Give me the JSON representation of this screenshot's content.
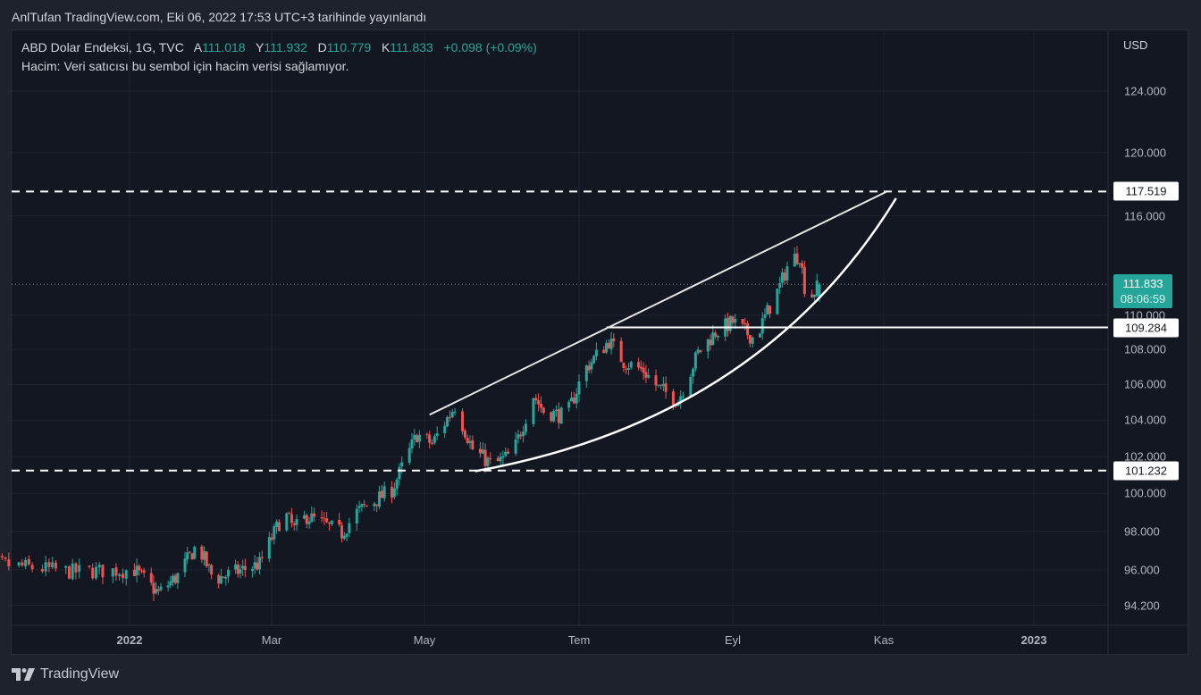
{
  "header": {
    "published": "AnlTufan TradingView.com, Eki 06, 2022 17:53 UTC+3 tarihinde yayınlandı"
  },
  "legend": {
    "symbol": "ABD Dolar Endeksi, 1G, TVC",
    "open_label": "A",
    "open": "111.018",
    "high_label": "Y",
    "high": "111.932",
    "low_label": "D",
    "low": "110.779",
    "close_label": "K",
    "close": "111.833",
    "change": "+0.098 (+0.09%)",
    "volume_note": "Hacim: Veri satıcısı bu sembol için hacim verisi sağlamıyor."
  },
  "price_axis": {
    "currency": "USD",
    "last_price": "111.833",
    "countdown": "08:06:59",
    "levels": [
      "117.519",
      "109.284",
      "101.232"
    ]
  },
  "brand": {
    "name": "TradingView"
  },
  "colors": {
    "up": "#26a69a",
    "down": "#ef5350",
    "background": "#131722",
    "drawing": "#ffffff"
  },
  "chart_data": {
    "type": "candlestick",
    "title": "ABD Dolar Endeksi, 1G, TVC",
    "scale": "log",
    "ylim": [
      93.5,
      126
    ],
    "y_ticks": [
      "124.000",
      "120.000",
      "116.000",
      "110.000",
      "108.000",
      "106.000",
      "104.000",
      "102.000",
      "100.000",
      "98.000",
      "96.000",
      "94.200"
    ],
    "x_ticks": [
      {
        "label": "2022",
        "date": "2022-01-01",
        "bold": true
      },
      {
        "label": "Mar",
        "date": "2022-03-01"
      },
      {
        "label": "May",
        "date": "2022-05-01"
      },
      {
        "label": "Tem",
        "date": "2022-07-01"
      },
      {
        "label": "Eyl",
        "date": "2022-09-01"
      },
      {
        "label": "Kas",
        "date": "2022-11-01"
      },
      {
        "label": "2023",
        "date": "2023-01-01",
        "bold": true
      }
    ],
    "close_anchors": [
      [
        "2021-11-14",
        95.7
      ],
      [
        "2021-11-23",
        96.3
      ],
      [
        "2021-12-15",
        95.9
      ],
      [
        "2022-01-03",
        96.0
      ],
      [
        "2022-01-13",
        94.8
      ],
      [
        "2022-01-21",
        95.7
      ],
      [
        "2022-01-29",
        97.3
      ],
      [
        "2022-02-05",
        95.5
      ],
      [
        "2022-02-24",
        96.3
      ],
      [
        "2022-03-06",
        99.0
      ],
      [
        "2022-03-10",
        98.1
      ],
      [
        "2022-03-15",
        98.8
      ],
      [
        "2022-03-29",
        97.9
      ],
      [
        "2022-04-04",
        99.0
      ],
      [
        "2022-04-18",
        100.2
      ],
      [
        "2022-04-28",
        103.2
      ],
      [
        "2022-05-04",
        102.7
      ],
      [
        "2022-05-13",
        104.8
      ],
      [
        "2022-05-20",
        102.4
      ],
      [
        "2022-05-28",
        101.5
      ],
      [
        "2022-06-05",
        102.2
      ],
      [
        "2022-06-13",
        105.4
      ],
      [
        "2022-06-17",
        104.5
      ],
      [
        "2022-06-26",
        104.2
      ],
      [
        "2022-07-03",
        106.8
      ],
      [
        "2022-07-13",
        108.5
      ],
      [
        "2022-07-19",
        107.3
      ],
      [
        "2022-07-27",
        106.8
      ],
      [
        "2022-08-02",
        105.8
      ],
      [
        "2022-08-10",
        105.1
      ],
      [
        "2022-08-18",
        107.8
      ],
      [
        "2022-08-25",
        109.0
      ],
      [
        "2022-09-01",
        109.6
      ],
      [
        "2022-09-10",
        108.6
      ],
      [
        "2022-09-15",
        110.2
      ],
      [
        "2022-09-20",
        111.7
      ],
      [
        "2022-09-24",
        113.3
      ],
      [
        "2022-09-28",
        113.6
      ],
      [
        "2022-10-01",
        110.8
      ],
      [
        "2022-10-06",
        111.833
      ]
    ],
    "last_bar": {
      "open": 111.018,
      "high": 111.932,
      "low": 110.779,
      "close": 111.833
    },
    "horizontal_lines": [
      {
        "price": 117.519,
        "style": "dashed"
      },
      {
        "price": 101.232,
        "style": "dashed"
      },
      {
        "price": 109.284,
        "style": "solid",
        "from": "2022-07-12"
      }
    ],
    "trend_line": [
      [
        "2022-05-03",
        104.3
      ],
      [
        "2022-11-02",
        117.5
      ]
    ],
    "arc": [
      [
        "2022-05-21",
        101.2
      ],
      [
        "2022-09-12",
        104.0
      ],
      [
        "2022-11-06",
        117.1
      ]
    ]
  }
}
